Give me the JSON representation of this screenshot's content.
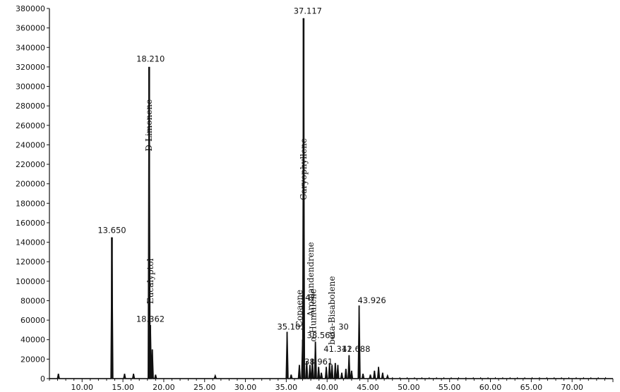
{
  "chart_data": {
    "type": "line",
    "title": "",
    "xlabel": "",
    "ylabel": "",
    "xlim": [
      6,
      75
    ],
    "ylim": [
      0,
      380000
    ],
    "grid": false,
    "y_ticks": [
      0,
      20000,
      40000,
      60000,
      80000,
      100000,
      120000,
      140000,
      160000,
      180000,
      200000,
      220000,
      240000,
      260000,
      280000,
      300000,
      320000,
      340000,
      360000,
      380000
    ],
    "y_tick_labels": [
      "0",
      "20000",
      "40000",
      "60000",
      "80000",
      "100000",
      "120000",
      "140000",
      "160000",
      "180000",
      "200000",
      "220000",
      "240000",
      "260000",
      "280000",
      "300000",
      "320000",
      "340000",
      "360000",
      "380000"
    ],
    "x_ticks": [
      10,
      15,
      20,
      25,
      30,
      35,
      40,
      45,
      50,
      55,
      60,
      65,
      70
    ],
    "x_tick_labels": [
      "10.00",
      "15.00",
      "20.00",
      "25.00",
      "30.00",
      "35.00",
      "40.00",
      "45.00",
      "50.00",
      "55.00",
      "60.00",
      "65.00",
      "70.00"
    ],
    "peaks": [
      {
        "x": 7.1,
        "y": 5000
      },
      {
        "x": 13.65,
        "y": 145000
      },
      {
        "x": 15.2,
        "y": 5000
      },
      {
        "x": 16.3,
        "y": 5000
      },
      {
        "x": 18.21,
        "y": 320000
      },
      {
        "x": 18.362,
        "y": 55000
      },
      {
        "x": 18.6,
        "y": 30000
      },
      {
        "x": 19.0,
        "y": 4000
      },
      {
        "x": 26.3,
        "y": 3000
      },
      {
        "x": 35.103,
        "y": 48000
      },
      {
        "x": 35.6,
        "y": 4000
      },
      {
        "x": 36.6,
        "y": 14000
      },
      {
        "x": 37.0,
        "y": 40000
      },
      {
        "x": 37.117,
        "y": 370000
      },
      {
        "x": 37.5,
        "y": 18000
      },
      {
        "x": 37.9,
        "y": 14000
      },
      {
        "x": 38.2,
        "y": 20000
      },
      {
        "x": 38.569,
        "y": 38000
      },
      {
        "x": 38.961,
        "y": 12000
      },
      {
        "x": 39.3,
        "y": 6000
      },
      {
        "x": 39.9,
        "y": 12000
      },
      {
        "x": 40.3,
        "y": 16000
      },
      {
        "x": 40.6,
        "y": 14000
      },
      {
        "x": 41.0,
        "y": 16000
      },
      {
        "x": 41.311,
        "y": 14000
      },
      {
        "x": 41.8,
        "y": 6000
      },
      {
        "x": 42.3,
        "y": 10000
      },
      {
        "x": 42.688,
        "y": 24000
      },
      {
        "x": 43.0,
        "y": 8000
      },
      {
        "x": 43.926,
        "y": 75000
      },
      {
        "x": 44.4,
        "y": 5000
      },
      {
        "x": 45.3,
        "y": 4000
      },
      {
        "x": 45.8,
        "y": 8000
      },
      {
        "x": 46.3,
        "y": 12000
      },
      {
        "x": 46.8,
        "y": 6000
      },
      {
        "x": 47.4,
        "y": 3000
      }
    ],
    "peak_labels": [
      {
        "text": "13.650",
        "x": 13.65
      },
      {
        "text": "18.210",
        "x": 18.21
      },
      {
        "text": "18.362",
        "x": 18.362
      },
      {
        "text": "37.117",
        "x": 37.117
      },
      {
        "text": "35.103",
        "x": 35.103
      },
      {
        "text": "47",
        "x": 37.6
      },
      {
        "text": "38.569",
        "x": 38.569
      },
      {
        "text": "30",
        "x": 41.5
      },
      {
        "text": "42.688",
        "x": 42.688
      },
      {
        "text": "41.311",
        "x": 41.311
      },
      {
        "text": "38.961",
        "x": 38.961
      },
      {
        "text": "43.926",
        "x": 43.926
      }
    ],
    "annotations": [
      {
        "text": "D-Limonene",
        "x": 18.21,
        "y": 260000
      },
      {
        "text": "Caryophyllene",
        "x": 37.117,
        "y": 215000
      },
      {
        "text": "Aromandendrene",
        "x": 38.0,
        "y": 102000
      },
      {
        "text": "Copaene",
        "x": 36.6,
        "y": 72000
      },
      {
        "text": "α-Humulene",
        "x": 38.3,
        "y": 65000
      },
      {
        "text": "beta-Bisabolene",
        "x": 40.6,
        "y": 70000
      },
      {
        "text": "Eucalyptol",
        "x": 18.35,
        "y": 100000
      }
    ]
  }
}
